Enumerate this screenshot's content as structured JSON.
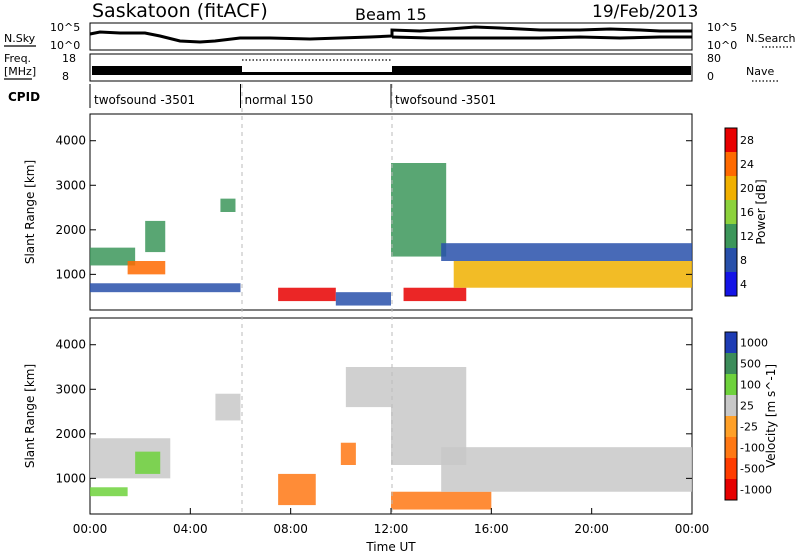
{
  "header": {
    "station": "Saskatoon (fitACF)",
    "beam": "Beam 15",
    "date": "19/Feb/2013"
  },
  "top_panel": {
    "left_label": "N.Sky",
    "left_ticks": [
      "10^5",
      "10^0"
    ],
    "right_ticks": [
      "10^5",
      "10^0"
    ],
    "right_label": "N.Search"
  },
  "freq_panel": {
    "left_label_1": "Freq.",
    "left_label_2": "[MHz]",
    "left_ticks": [
      "18",
      "8"
    ],
    "right_ticks": [
      "80",
      "0"
    ],
    "right_label": "Nave"
  },
  "cpid": {
    "label": "CPID",
    "segments": [
      {
        "start": 0,
        "end": 6,
        "name": "twofsound -3501"
      },
      {
        "start": 6,
        "end": 12,
        "name": "normal 150"
      },
      {
        "start": 12,
        "end": 24,
        "name": "twofsound -3501"
      }
    ]
  },
  "chart_data": [
    {
      "type": "heatmap",
      "title": "",
      "xlabel": "Time UT",
      "ylabel": "Slant Range [km]",
      "xlim": [
        0,
        24
      ],
      "ylim": [
        200,
        4600
      ],
      "x_ticks": [
        "00:00",
        "04:00",
        "08:00",
        "12:00",
        "16:00",
        "20:00",
        "00:00"
      ],
      "y_ticks": [
        1000,
        2000,
        3000,
        4000
      ],
      "colorbar": {
        "label": "Power [dB]",
        "ticks": [
          "28",
          "24",
          "20",
          "16",
          "12",
          "8",
          "4"
        ],
        "colors": [
          "#e80000",
          "#ff6a00",
          "#f0b000",
          "#8cd23c",
          "#3c965a",
          "#2850aa",
          "#1414e6"
        ]
      },
      "series": [
        {
          "x": [
            0.0,
            1.8
          ],
          "y": [
            1200,
            1600
          ],
          "value": 12
        },
        {
          "x": [
            0.0,
            6.0
          ],
          "y": [
            600,
            800
          ],
          "value": 8
        },
        {
          "x": [
            1.5,
            3.0
          ],
          "y": [
            1000,
            1300
          ],
          "value": 22
        },
        {
          "x": [
            2.2,
            3.0
          ],
          "y": [
            1500,
            2200
          ],
          "value": 10
        },
        {
          "x": [
            5.2,
            5.8
          ],
          "y": [
            2400,
            2700
          ],
          "value": 12
        },
        {
          "x": [
            7.5,
            9.8
          ],
          "y": [
            400,
            700
          ],
          "value": 26
        },
        {
          "x": [
            9.8,
            12.0
          ],
          "y": [
            300,
            600
          ],
          "value": 8
        },
        {
          "x": [
            12.0,
            14.2
          ],
          "y": [
            1400,
            3500
          ],
          "value": 12
        },
        {
          "x": [
            12.5,
            15.0
          ],
          "y": [
            400,
            700
          ],
          "value": 26
        },
        {
          "x": [
            14.5,
            24.0
          ],
          "y": [
            700,
            1300
          ],
          "value": 20
        },
        {
          "x": [
            14.0,
            24.0
          ],
          "y": [
            1300,
            1700
          ],
          "value": 8
        }
      ]
    },
    {
      "type": "heatmap",
      "title": "",
      "xlabel": "Time UT",
      "ylabel": "Slant Range [km]",
      "xlim": [
        0,
        24
      ],
      "ylim": [
        200,
        4600
      ],
      "x_ticks": [
        "00:00",
        "04:00",
        "08:00",
        "12:00",
        "16:00",
        "20:00",
        "00:00"
      ],
      "y_ticks": [
        1000,
        2000,
        3000,
        4000
      ],
      "colorbar": {
        "label": "Velocity [m s^-1]",
        "ticks": [
          "1000",
          "500",
          "100",
          "25",
          "-25",
          "-100",
          "-500",
          "-1000"
        ],
        "colors": [
          "#1e3cb4",
          "#3c8c5a",
          "#6ed23c",
          "#c8c8c8",
          "#ffa028",
          "#ff7814",
          "#ff3c00",
          "#e60000"
        ]
      },
      "series": [
        {
          "x": [
            0.0,
            3.2
          ],
          "y": [
            1000,
            1900
          ],
          "value": 0
        },
        {
          "x": [
            0.0,
            1.5
          ],
          "y": [
            600,
            800
          ],
          "value": 100
        },
        {
          "x": [
            1.8,
            2.8
          ],
          "y": [
            1100,
            1600
          ],
          "value": 100
        },
        {
          "x": [
            5.0,
            6.0
          ],
          "y": [
            2300,
            2900
          ],
          "value": 0
        },
        {
          "x": [
            7.5,
            9.0
          ],
          "y": [
            400,
            1100
          ],
          "value": -100
        },
        {
          "x": [
            10.0,
            10.6
          ],
          "y": [
            1300,
            1800
          ],
          "value": -100
        },
        {
          "x": [
            10.2,
            12.0
          ],
          "y": [
            2600,
            3500
          ],
          "value": 0
        },
        {
          "x": [
            12.0,
            15.0
          ],
          "y": [
            1300,
            3500
          ],
          "value": 0
        },
        {
          "x": [
            12.0,
            16.0
          ],
          "y": [
            300,
            700
          ],
          "value": -100
        },
        {
          "x": [
            14.0,
            24.0
          ],
          "y": [
            700,
            1700
          ],
          "value": 0
        }
      ]
    }
  ]
}
